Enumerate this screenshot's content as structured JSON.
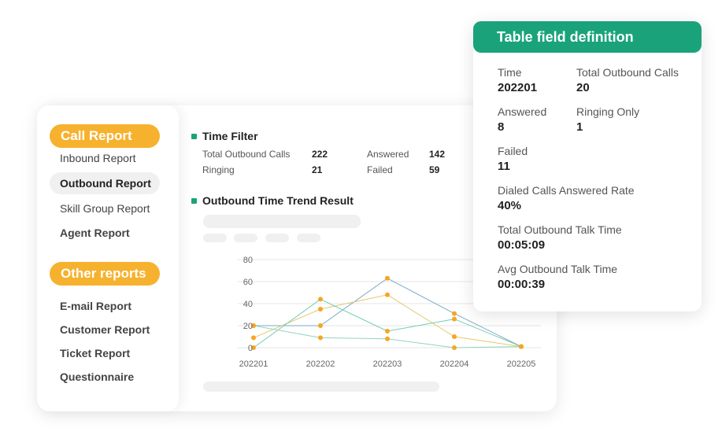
{
  "sidebar": {
    "call_report_heading": "Call Report",
    "call_items": [
      "Inbound Report",
      "Outbound Report",
      "Skill Group Report",
      "Agent Report"
    ],
    "other_reports_heading": "Other reports",
    "other_items": [
      "E-mail Report",
      "Customer Report",
      "Ticket Report",
      "Questionnaire"
    ]
  },
  "time_filter": {
    "title": "Time Filter",
    "stats": [
      {
        "label": "Total Outbound Calls",
        "value": "222"
      },
      {
        "label": "Answered",
        "value": "142"
      },
      {
        "label": "Ringing",
        "value": "21"
      },
      {
        "label": "Failed",
        "value": "59"
      }
    ]
  },
  "trend": {
    "title": "Outbound Time Trend Result"
  },
  "chart_data": {
    "type": "line",
    "categories": [
      "202201",
      "202202",
      "202203",
      "202204",
      "202205"
    ],
    "y_ticks": [
      "0",
      "20",
      "40",
      "60",
      "80"
    ],
    "ylim": [
      0,
      80
    ],
    "grid": true,
    "series": [
      {
        "color": "#7aa9c9",
        "values": [
          20,
          20,
          63,
          31,
          1
        ]
      },
      {
        "color": "#e4c76b",
        "values": [
          9,
          35,
          48,
          10,
          1
        ]
      },
      {
        "color": "#6fcdb0",
        "values": [
          0,
          44,
          15,
          26,
          1
        ]
      },
      {
        "color": "#8fd6bf",
        "values": [
          20,
          9,
          8,
          0,
          1
        ]
      }
    ],
    "marker_color": "#f6a623"
  },
  "definition": {
    "title": "Table field definition",
    "fields": [
      {
        "label": "Time",
        "value": "202201"
      },
      {
        "label": "Total Outbound Calls",
        "value": "20"
      },
      {
        "label": "Answered",
        "value": "8"
      },
      {
        "label": "Ringing Only",
        "value": "1"
      },
      {
        "label": "Failed",
        "value": "11"
      },
      {
        "label": "Dialed Calls Answered Rate",
        "value": "40%"
      },
      {
        "label": "Total Outbound Talk Time",
        "value": "00:05:09"
      },
      {
        "label": "Avg Outbound Talk Time",
        "value": "00:00:39"
      }
    ]
  },
  "colors": {
    "accent_orange": "#f6b22e",
    "accent_green": "#1aa37a"
  }
}
